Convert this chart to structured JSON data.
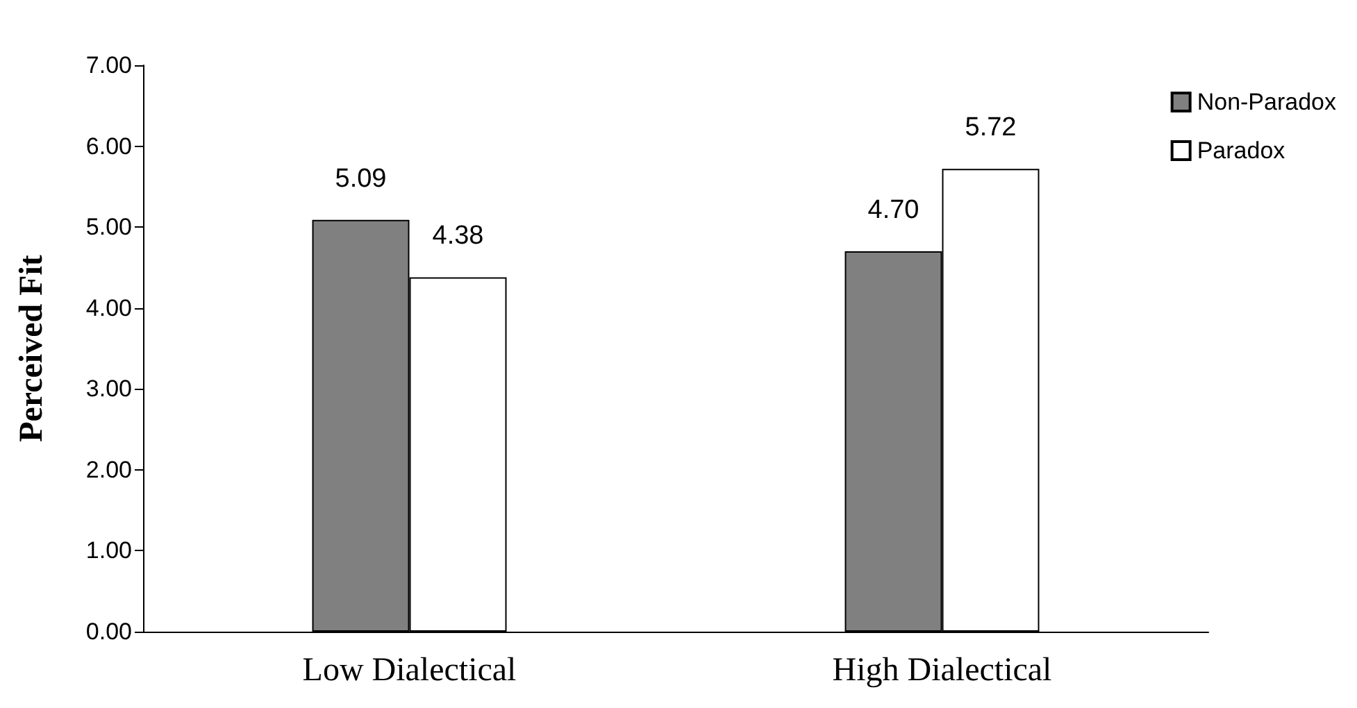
{
  "chart_data": {
    "type": "bar",
    "ylabel": "Perceived Fit",
    "categories": [
      "Low Dialectical",
      "High Dialectical"
    ],
    "series": [
      {
        "name": "Non-Paradox",
        "color": "#808080",
        "values": [
          5.09,
          4.7
        ],
        "value_labels": [
          "5.09",
          "4.70"
        ]
      },
      {
        "name": "Paradox",
        "color": "#ffffff",
        "values": [
          4.38,
          5.72
        ],
        "value_labels": [
          "4.38",
          "5.72"
        ]
      }
    ],
    "ylim": [
      0,
      7
    ],
    "yticks": [
      {
        "value": 0,
        "label": "0.00"
      },
      {
        "value": 1,
        "label": "1.00"
      },
      {
        "value": 2,
        "label": "2.00"
      },
      {
        "value": 3,
        "label": "3.00"
      },
      {
        "value": 4,
        "label": "4.00"
      },
      {
        "value": 5,
        "label": "5.00"
      },
      {
        "value": 6,
        "label": "6.00"
      },
      {
        "value": 7,
        "label": "7.00"
      }
    ],
    "grid": false,
    "legend": "top right"
  }
}
